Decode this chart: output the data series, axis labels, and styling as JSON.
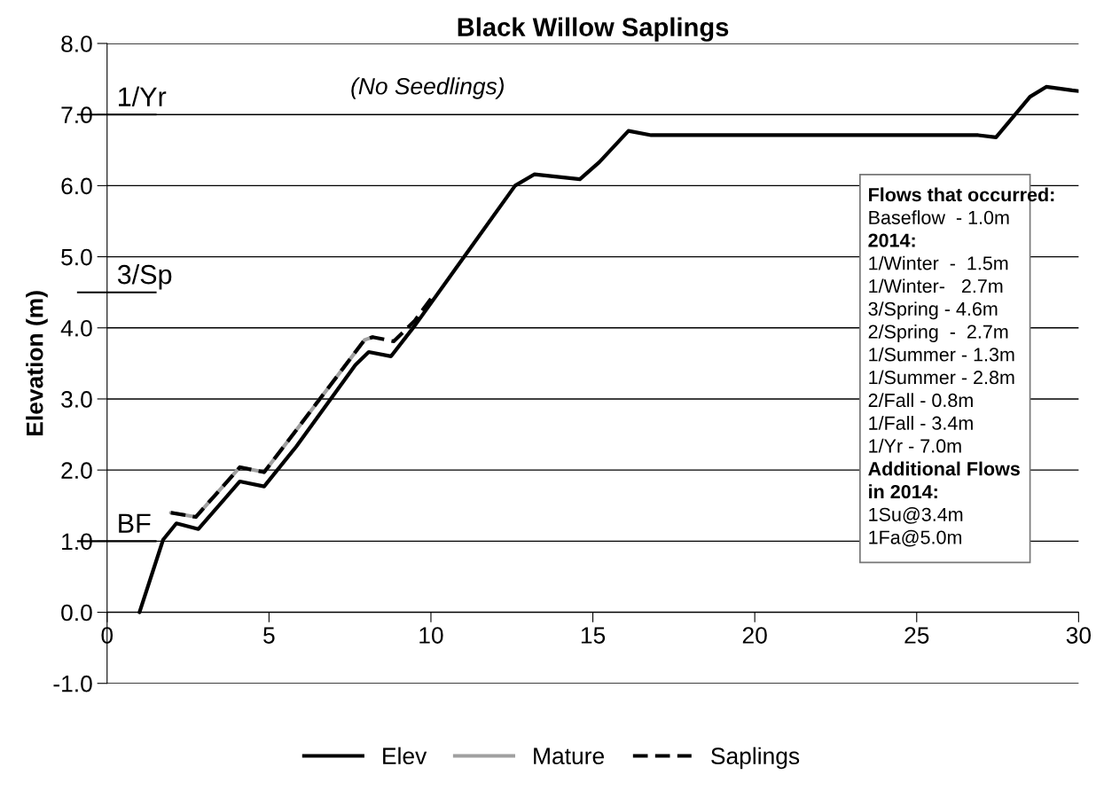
{
  "chart_data": {
    "type": "line",
    "title": "Black Willow Saplings",
    "subtitle": "(No Seedlings)",
    "ylabel": "Elevation (m)",
    "xlim": [
      0,
      30
    ],
    "xticks": [
      0,
      5,
      10,
      15,
      20,
      25,
      30
    ],
    "ylim": [
      -1,
      8
    ],
    "yticks": [
      {
        "value": -1,
        "label": "-1.0"
      },
      {
        "value": 0,
        "label": "0.0"
      },
      {
        "value": 1,
        "label": "1.0"
      },
      {
        "value": 2,
        "label": "2.0"
      },
      {
        "value": 3,
        "label": "3.0"
      },
      {
        "value": 4,
        "label": "4.0"
      },
      {
        "value": 5,
        "label": "5.0"
      },
      {
        "value": 6,
        "label": "6.0"
      },
      {
        "value": 7,
        "label": "7.0"
      },
      {
        "value": 8,
        "label": "8.0"
      }
    ],
    "grid": "y",
    "legend": "bottom",
    "marker": "none",
    "series": [
      {
        "name": "Elev",
        "color": "#000000",
        "line_style": "solid",
        "x": [
          1.0,
          1.73,
          2.14,
          2.82,
          4.1,
          4.85,
          5.84,
          7.67,
          8.08,
          8.77,
          9.5,
          12.6,
          13.2,
          14.6,
          15.2,
          16.1,
          16.8,
          26.9,
          27.45,
          28.5,
          29.0,
          29.8,
          30.0
        ],
        "values": [
          0.0,
          1.02,
          1.25,
          1.17,
          1.84,
          1.77,
          2.33,
          3.48,
          3.66,
          3.6,
          4.03,
          6.0,
          6.16,
          6.09,
          6.33,
          6.77,
          6.71,
          6.71,
          6.68,
          7.25,
          7.39,
          7.34,
          7.33
        ]
      },
      {
        "name": "Mature",
        "color": "#a0a0a0",
        "line_style": "solid",
        "x": [
          1.97,
          2.74,
          4.1,
          4.85,
          5.84,
          7.95,
          8.2
        ],
        "values": [
          1.4,
          1.34,
          2.04,
          1.97,
          2.56,
          3.83,
          3.87
        ]
      },
      {
        "name": "Saplings",
        "color": "#000000",
        "line_style": "dashed",
        "x": [
          1.97,
          2.74,
          4.1,
          4.85,
          5.84,
          7.95,
          8.2,
          8.85,
          9.5,
          10.0
        ],
        "values": [
          1.4,
          1.34,
          2.04,
          1.97,
          2.56,
          3.83,
          3.87,
          3.81,
          4.1,
          4.41
        ]
      }
    ],
    "ref_lines": [
      {
        "axis": "y",
        "value": 7.0,
        "label": "1/Yr",
        "color": "#000000"
      },
      {
        "axis": "y",
        "value": 4.5,
        "label": "3/Sp",
        "color": "#000000"
      },
      {
        "axis": "y",
        "value": 1.0,
        "label": "BF",
        "color": "#000000"
      }
    ],
    "annotations": [
      "Flows that occurred:",
      "Baseflow  - 1.0m",
      "2014:",
      "1/Winter  -  1.5m",
      "1/Winter-   2.7m",
      "3/Spring - 4.6m",
      "2/Spring  -  2.7m",
      "1/Summer - 1.3m",
      "1/Summer - 2.8m",
      "2/Fall - 0.8m",
      "1/Fall - 3.4m",
      "1/Yr - 7.0m",
      "Additional Flows",
      "in 2014:",
      "1Su@3.4m",
      "1Fa@5.0m"
    ]
  }
}
